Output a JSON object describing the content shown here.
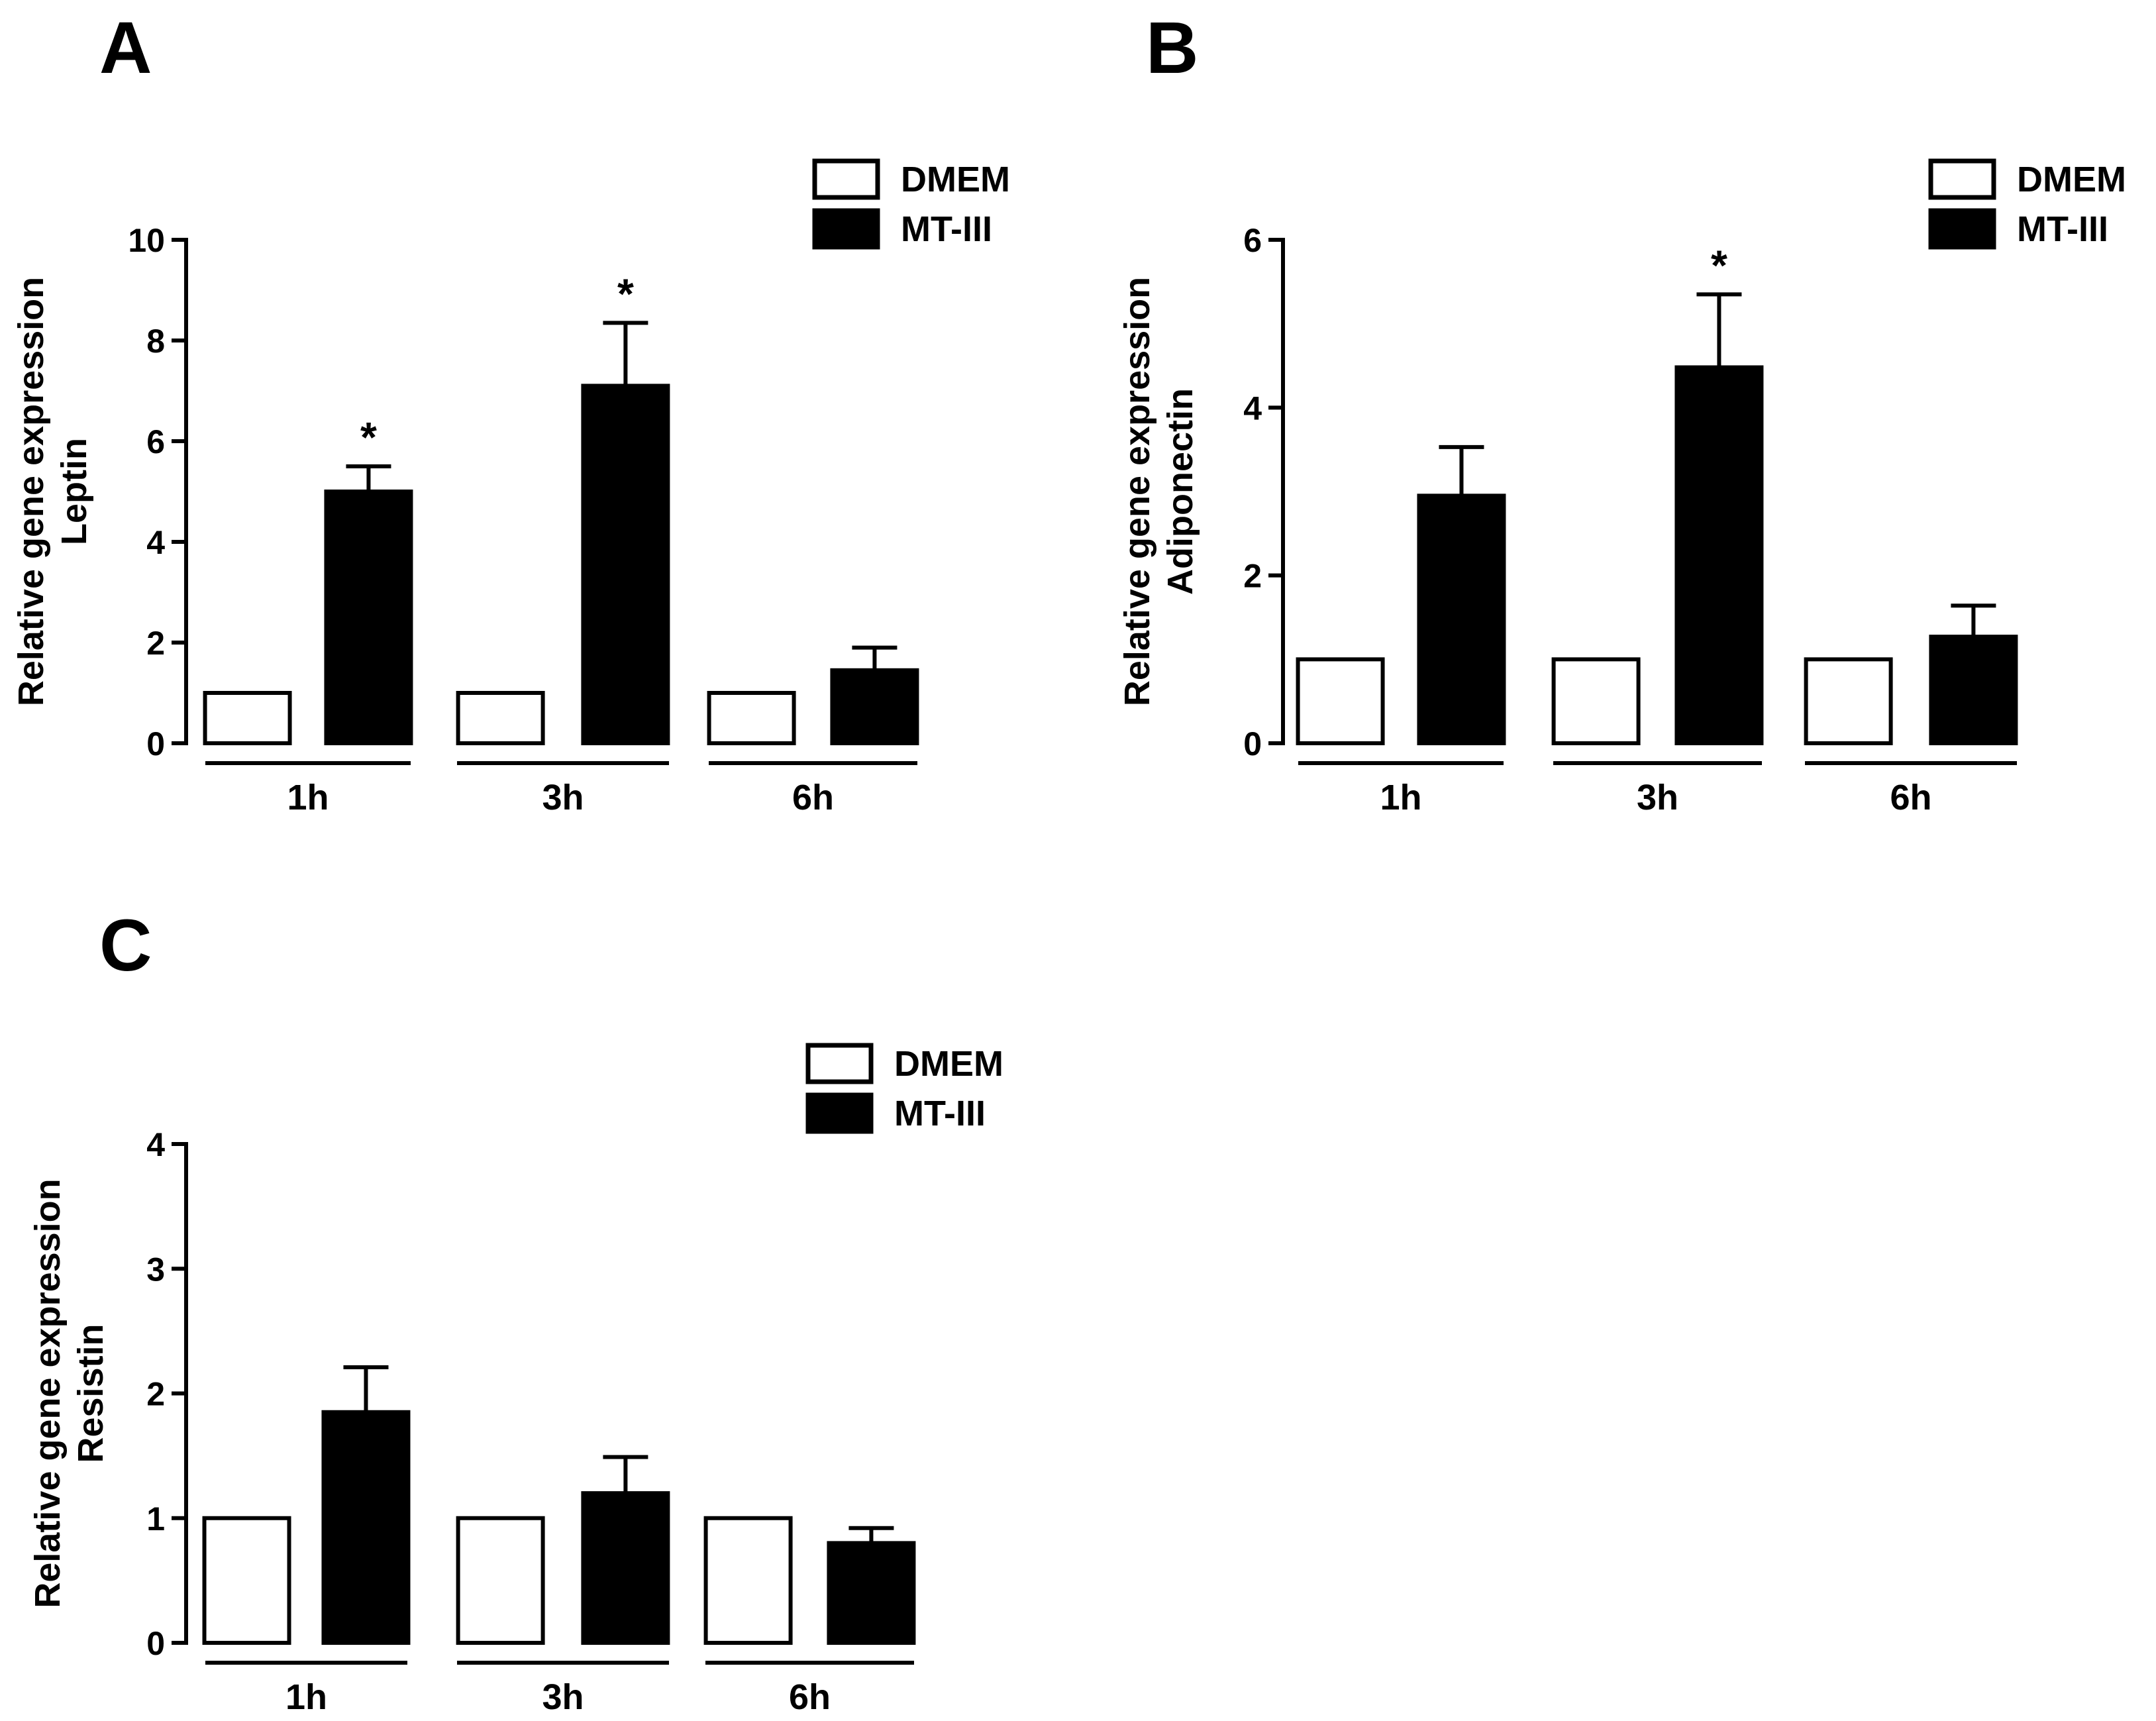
{
  "legend": [
    {
      "label": "DMEM",
      "color": "#ffffff"
    },
    {
      "label": "MT-III",
      "color": "#000000"
    }
  ],
  "chart_data": [
    {
      "type": "bar",
      "panel": "A",
      "ylabel_lines": [
        "Relative gene expression",
        "Leptin"
      ],
      "categories": [
        "1h",
        "3h",
        "6h"
      ],
      "ylim": [
        0,
        10
      ],
      "yticks": [
        0,
        2,
        4,
        6,
        8,
        10
      ],
      "series": [
        {
          "name": "DMEM",
          "values": [
            1,
            1,
            1
          ],
          "errors": [
            0,
            0,
            0
          ]
        },
        {
          "name": "MT-III",
          "values": [
            5.0,
            7.1,
            1.45
          ],
          "errors": [
            0.5,
            1.25,
            0.45
          ]
        }
      ],
      "annotations": [
        {
          "category": "1h",
          "series": "MT-III",
          "text": "*"
        },
        {
          "category": "3h",
          "series": "MT-III",
          "text": "*"
        }
      ]
    },
    {
      "type": "bar",
      "panel": "B",
      "ylabel_lines": [
        "Relative gene expression",
        "Adiponectin"
      ],
      "categories": [
        "1h",
        "3h",
        "6h"
      ],
      "ylim": [
        0,
        6
      ],
      "yticks": [
        0,
        2,
        4,
        6
      ],
      "series": [
        {
          "name": "DMEM",
          "values": [
            1,
            1,
            1
          ],
          "errors": [
            0,
            0,
            0
          ]
        },
        {
          "name": "MT-III",
          "values": [
            2.95,
            4.48,
            1.27
          ],
          "errors": [
            0.58,
            0.87,
            0.37
          ]
        }
      ],
      "annotations": [
        {
          "category": "3h",
          "series": "MT-III",
          "text": "*"
        }
      ]
    },
    {
      "type": "bar",
      "panel": "C",
      "ylabel_lines": [
        "Relative gene expression",
        "Resistin"
      ],
      "categories": [
        "1h",
        "3h",
        "6h"
      ],
      "ylim": [
        0,
        4
      ],
      "yticks": [
        0,
        1,
        2,
        3,
        4
      ],
      "series": [
        {
          "name": "DMEM",
          "values": [
            1,
            1,
            1
          ],
          "errors": [
            0,
            0,
            0
          ]
        },
        {
          "name": "MT-III",
          "values": [
            1.85,
            1.2,
            0.8
          ],
          "errors": [
            0.36,
            0.29,
            0.12
          ]
        }
      ],
      "annotations": []
    }
  ]
}
